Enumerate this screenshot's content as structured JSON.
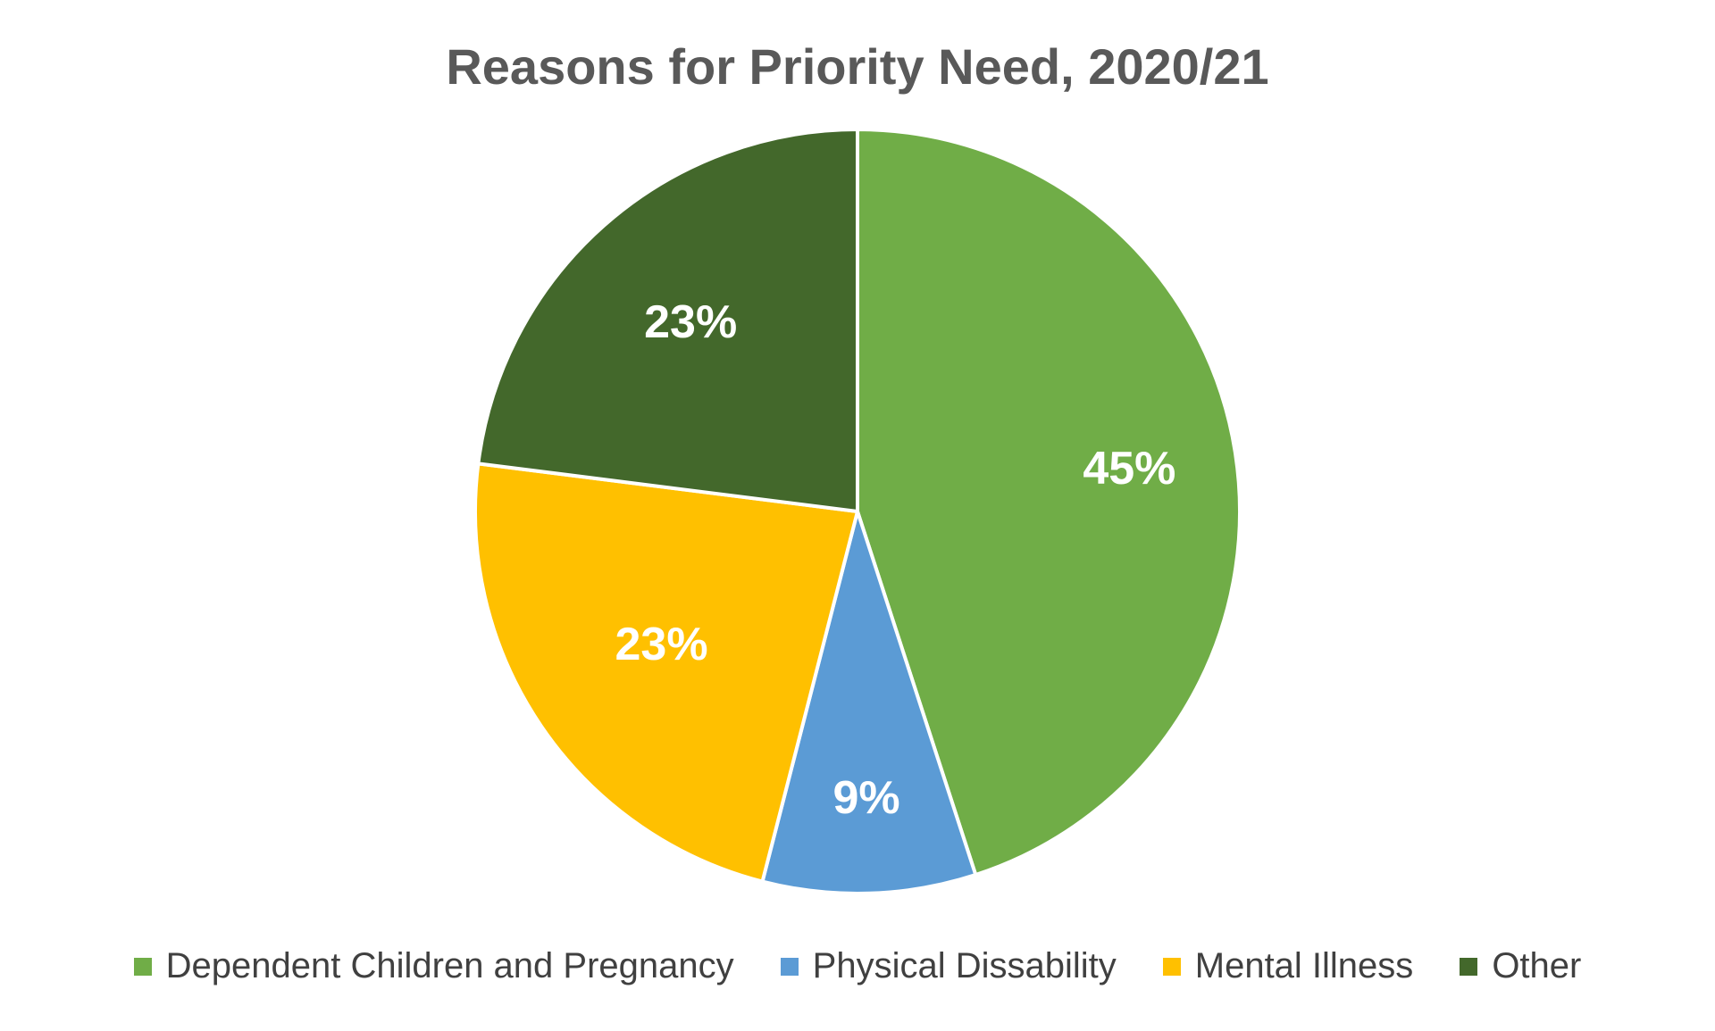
{
  "chart_data": {
    "type": "pie",
    "title": "Reasons for Priority Need, 2020/21",
    "categories": [
      "Dependent Children and Pregnancy",
      "Physical Dissability",
      "Mental Illness",
      "Other"
    ],
    "values": [
      45,
      9,
      23,
      23
    ],
    "data_labels": [
      "45%",
      "9%",
      "23%",
      "23%"
    ],
    "colors": [
      "#70AD47",
      "#5B9BD5",
      "#FFC000",
      "#43682B"
    ],
    "start_angle_deg": 0,
    "direction": "clockwise",
    "legend_position": "bottom"
  }
}
